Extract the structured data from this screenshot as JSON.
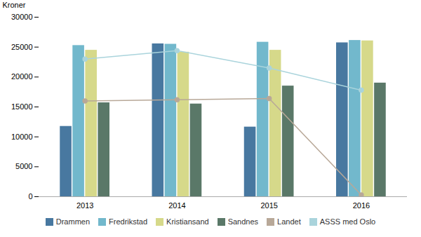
{
  "chart_data": {
    "type": "bar",
    "categories": [
      "2013",
      "2014",
      "2015",
      "2016"
    ],
    "series": [
      {
        "name": "Drammen",
        "type": "bar",
        "color": "#4878a0",
        "values": [
          11753,
          25551,
          11645,
          25725
        ]
      },
      {
        "name": "Fredrikstad",
        "type": "bar",
        "color": "#72b8cc",
        "values": [
          25271,
          25488,
          25825,
          26120
        ]
      },
      {
        "name": "Kristiansand",
        "type": "bar",
        "color": "#d6d98a",
        "values": [
          24480,
          24164,
          24480,
          26050
        ]
      },
      {
        "name": "Sandnes",
        "type": "bar",
        "color": "#5a7868",
        "values": [
          15700,
          15500,
          18500,
          19000
        ]
      },
      {
        "name": "Landet",
        "type": "line",
        "marker": "circle",
        "color": "#b8a898",
        "values": [
          16000,
          16200,
          16400,
          300
        ]
      },
      {
        "name": "ASSS med Oslo",
        "type": "line",
        "marker": "circle",
        "color": "#aad4dc",
        "values": [
          23000,
          24400,
          21500,
          17800
        ]
      }
    ],
    "ylabel": "Kroner",
    "ylim": [
      0,
      30000
    ],
    "yticks": [
      0,
      5000,
      10000,
      15000,
      20000,
      25000,
      30000
    ],
    "grid": false,
    "legend": "bottom"
  }
}
